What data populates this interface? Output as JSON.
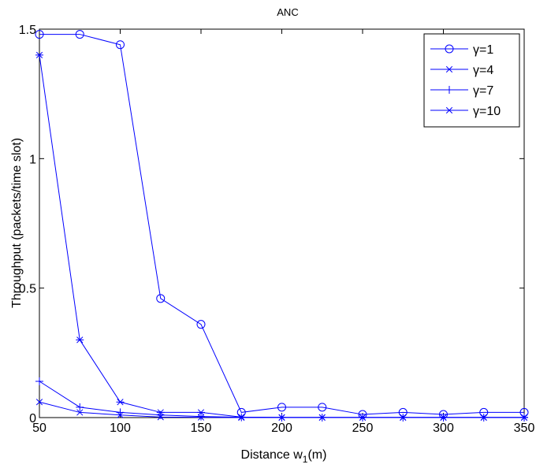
{
  "chart_data": {
    "type": "line",
    "title": "ANC",
    "xlabel_main": "Distance w",
    "xlabel_sub": "1",
    "xlabel_tail": "(m)",
    "ylabel": "Throughput (packets/time slot)",
    "xlim": [
      50,
      350
    ],
    "ylim": [
      0,
      1.5
    ],
    "xticks": [
      50,
      100,
      150,
      200,
      250,
      300,
      350
    ],
    "xtick_labels": [
      "50",
      "100",
      "150",
      "200",
      "250",
      "300",
      "350"
    ],
    "yticks": [
      0,
      0.5,
      1,
      1.5
    ],
    "ytick_labels": [
      "0",
      "0.5",
      "1",
      "1.5"
    ],
    "grid": false,
    "legend_position": "top-right",
    "line_color": "#0000ff",
    "x": [
      50,
      75,
      100,
      125,
      150,
      175,
      200,
      225,
      250,
      275,
      300,
      325,
      350
    ],
    "series": [
      {
        "name": "γ=1",
        "marker": "circle",
        "values": [
          1.48,
          1.48,
          1.44,
          0.46,
          0.36,
          0.02,
          0.04,
          0.04,
          0.012,
          0.02,
          0.012,
          0.02,
          0.02
        ]
      },
      {
        "name": "γ=4",
        "marker": "asterisk",
        "values": [
          1.4,
          0.3,
          0.06,
          0.02,
          0.02,
          0.002,
          0.001,
          0.001,
          0.001,
          0.001,
          0.001,
          0.001,
          0.001
        ]
      },
      {
        "name": "γ=7",
        "marker": "plus",
        "values": [
          0.14,
          0.04,
          0.02,
          0.01,
          0.004,
          0.001,
          0,
          0,
          0,
          0,
          0,
          0,
          0
        ]
      },
      {
        "name": "γ=10",
        "marker": "x",
        "values": [
          0.06,
          0.02,
          0.01,
          0.002,
          0.001,
          0,
          0,
          0,
          0,
          0,
          0,
          0,
          0
        ]
      }
    ]
  }
}
